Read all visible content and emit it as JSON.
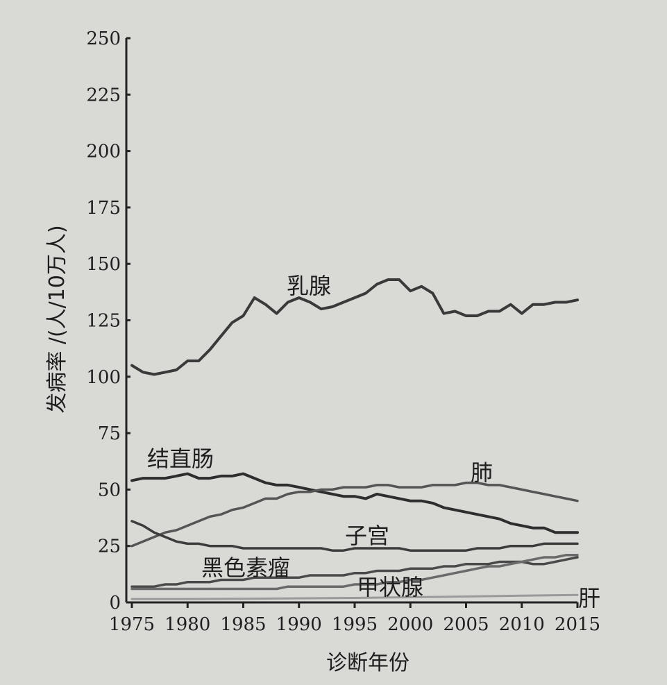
{
  "chart_data": {
    "type": "line",
    "title": "",
    "xlabel": "诊断年份",
    "ylabel": "发病率 /(人/10万人)",
    "xlim": [
      1975,
      2015
    ],
    "ylim": [
      0,
      250
    ],
    "x_ticks": [
      1975,
      1980,
      1985,
      1990,
      1995,
      2000,
      2005,
      2010,
      2015
    ],
    "y_ticks": [
      0,
      25,
      50,
      75,
      100,
      125,
      150,
      175,
      200,
      225,
      250
    ],
    "x_tick_labels": [
      "1975",
      "1980",
      "1985",
      "1990",
      "1995",
      "2000",
      "2005",
      "2010",
      "2015"
    ],
    "y_tick_labels": [
      "0",
      "25",
      "50",
      "75",
      "100",
      "125",
      "150",
      "175",
      "200",
      "225",
      "250"
    ],
    "series": [
      {
        "name": "乳腺",
        "color": "#3a3a3a",
        "x": [
          1975,
          1976,
          1977,
          1978,
          1979,
          1980,
          1981,
          1982,
          1983,
          1984,
          1985,
          1986,
          1987,
          1988,
          1989,
          1990,
          1991,
          1992,
          1993,
          1994,
          1995,
          1996,
          1997,
          1998,
          1999,
          2000,
          2001,
          2002,
          2003,
          2004,
          2005,
          2006,
          2007,
          2008,
          2009,
          2010,
          2011,
          2012,
          2013,
          2014,
          2015
        ],
        "values": [
          105,
          102,
          101,
          102,
          103,
          107,
          107,
          112,
          118,
          124,
          127,
          135,
          132,
          128,
          133,
          135,
          133,
          130,
          131,
          133,
          135,
          137,
          141,
          143,
          143,
          138,
          140,
          137,
          128,
          129,
          127,
          127,
          129,
          129,
          132,
          128,
          132,
          132,
          133,
          133,
          134
        ]
      },
      {
        "name": "结直肠",
        "color": "#2e2e2e",
        "x": [
          1975,
          1976,
          1977,
          1978,
          1979,
          1980,
          1981,
          1982,
          1983,
          1984,
          1985,
          1986,
          1987,
          1988,
          1989,
          1990,
          1991,
          1992,
          1993,
          1994,
          1995,
          1996,
          1997,
          1998,
          1999,
          2000,
          2001,
          2002,
          2003,
          2004,
          2005,
          2006,
          2007,
          2008,
          2009,
          2010,
          2011,
          2012,
          2013,
          2014,
          2015
        ],
        "values": [
          54,
          55,
          55,
          55,
          56,
          57,
          55,
          55,
          56,
          56,
          57,
          55,
          53,
          52,
          52,
          51,
          50,
          49,
          48,
          47,
          47,
          46,
          48,
          47,
          46,
          45,
          45,
          44,
          42,
          41,
          40,
          39,
          38,
          37,
          35,
          34,
          33,
          33,
          31,
          31,
          31
        ]
      },
      {
        "name": "肺",
        "color": "#555555",
        "x": [
          1975,
          1976,
          1977,
          1978,
          1979,
          1980,
          1981,
          1982,
          1983,
          1984,
          1985,
          1986,
          1987,
          1988,
          1989,
          1990,
          1991,
          1992,
          1993,
          1994,
          1995,
          1996,
          1997,
          1998,
          1999,
          2000,
          2001,
          2002,
          2003,
          2004,
          2005,
          2006,
          2007,
          2008,
          2009,
          2010,
          2011,
          2012,
          2013,
          2014,
          2015
        ],
        "values": [
          25,
          27,
          29,
          31,
          32,
          34,
          36,
          38,
          39,
          41,
          42,
          44,
          46,
          46,
          48,
          49,
          49,
          50,
          50,
          51,
          51,
          51,
          52,
          52,
          51,
          51,
          51,
          52,
          52,
          52,
          53,
          53,
          52,
          52,
          51,
          50,
          49,
          48,
          47,
          46,
          45
        ]
      },
      {
        "name": "子宫",
        "color": "#3c3c3c",
        "x": [
          1975,
          1976,
          1977,
          1978,
          1979,
          1980,
          1981,
          1982,
          1983,
          1984,
          1985,
          1986,
          1987,
          1988,
          1989,
          1990,
          1991,
          1992,
          1993,
          1994,
          1995,
          1996,
          1997,
          1998,
          1999,
          2000,
          2001,
          2002,
          2003,
          2004,
          2005,
          2006,
          2007,
          2008,
          2009,
          2010,
          2011,
          2012,
          2013,
          2014,
          2015
        ],
        "values": [
          36,
          34,
          31,
          29,
          27,
          26,
          26,
          25,
          25,
          25,
          24,
          24,
          24,
          24,
          24,
          24,
          24,
          24,
          23,
          23,
          24,
          24,
          24,
          24,
          24,
          23,
          23,
          23,
          23,
          23,
          23,
          24,
          24,
          24,
          25,
          25,
          25,
          26,
          26,
          26,
          26
        ]
      },
      {
        "name": "黑色素瘤",
        "color": "#4a4a4a",
        "x": [
          1975,
          1976,
          1977,
          1978,
          1979,
          1980,
          1981,
          1982,
          1983,
          1984,
          1985,
          1986,
          1987,
          1988,
          1989,
          1990,
          1991,
          1992,
          1993,
          1994,
          1995,
          1996,
          1997,
          1998,
          1999,
          2000,
          2001,
          2002,
          2003,
          2004,
          2005,
          2006,
          2007,
          2008,
          2009,
          2010,
          2011,
          2012,
          2013,
          2014,
          2015
        ],
        "values": [
          7,
          7,
          7,
          8,
          8,
          9,
          9,
          9,
          10,
          10,
          10,
          11,
          11,
          11,
          11,
          11,
          12,
          12,
          12,
          12,
          13,
          13,
          14,
          14,
          14,
          15,
          15,
          15,
          16,
          16,
          17,
          17,
          17,
          18,
          18,
          18,
          17,
          17,
          18,
          19,
          20
        ]
      },
      {
        "name": "甲状腺",
        "color": "#6a6a6a",
        "x": [
          1975,
          1976,
          1977,
          1978,
          1979,
          1980,
          1981,
          1982,
          1983,
          1984,
          1985,
          1986,
          1987,
          1988,
          1989,
          1990,
          1991,
          1992,
          1993,
          1994,
          1995,
          1996,
          1997,
          1998,
          1999,
          2000,
          2001,
          2002,
          2003,
          2004,
          2005,
          2006,
          2007,
          2008,
          2009,
          2010,
          2011,
          2012,
          2013,
          2014,
          2015
        ],
        "values": [
          6,
          6,
          6,
          6,
          6,
          6,
          6,
          6,
          6,
          6,
          6,
          6,
          6,
          6,
          7,
          7,
          7,
          7,
          7,
          7,
          8,
          8,
          8,
          9,
          9,
          10,
          10,
          11,
          12,
          13,
          14,
          15,
          16,
          16,
          17,
          18,
          19,
          20,
          20,
          21,
          21
        ]
      },
      {
        "name": "肝",
        "color": "#9a9a9a",
        "x": [
          1975,
          1980,
          1985,
          1990,
          1995,
          2000,
          2005,
          2010,
          2015
        ],
        "values": [
          1.5,
          1.5,
          1.6,
          1.8,
          2.0,
          2.3,
          2.6,
          3.0,
          3.3
        ]
      }
    ],
    "labels": {
      "breast": "乳腺",
      "colorectal": "结直肠",
      "lung": "肺",
      "uterus": "子宫",
      "melanoma": "黑色素瘤",
      "thyroid": "甲状腺",
      "liver": "肝"
    }
  }
}
